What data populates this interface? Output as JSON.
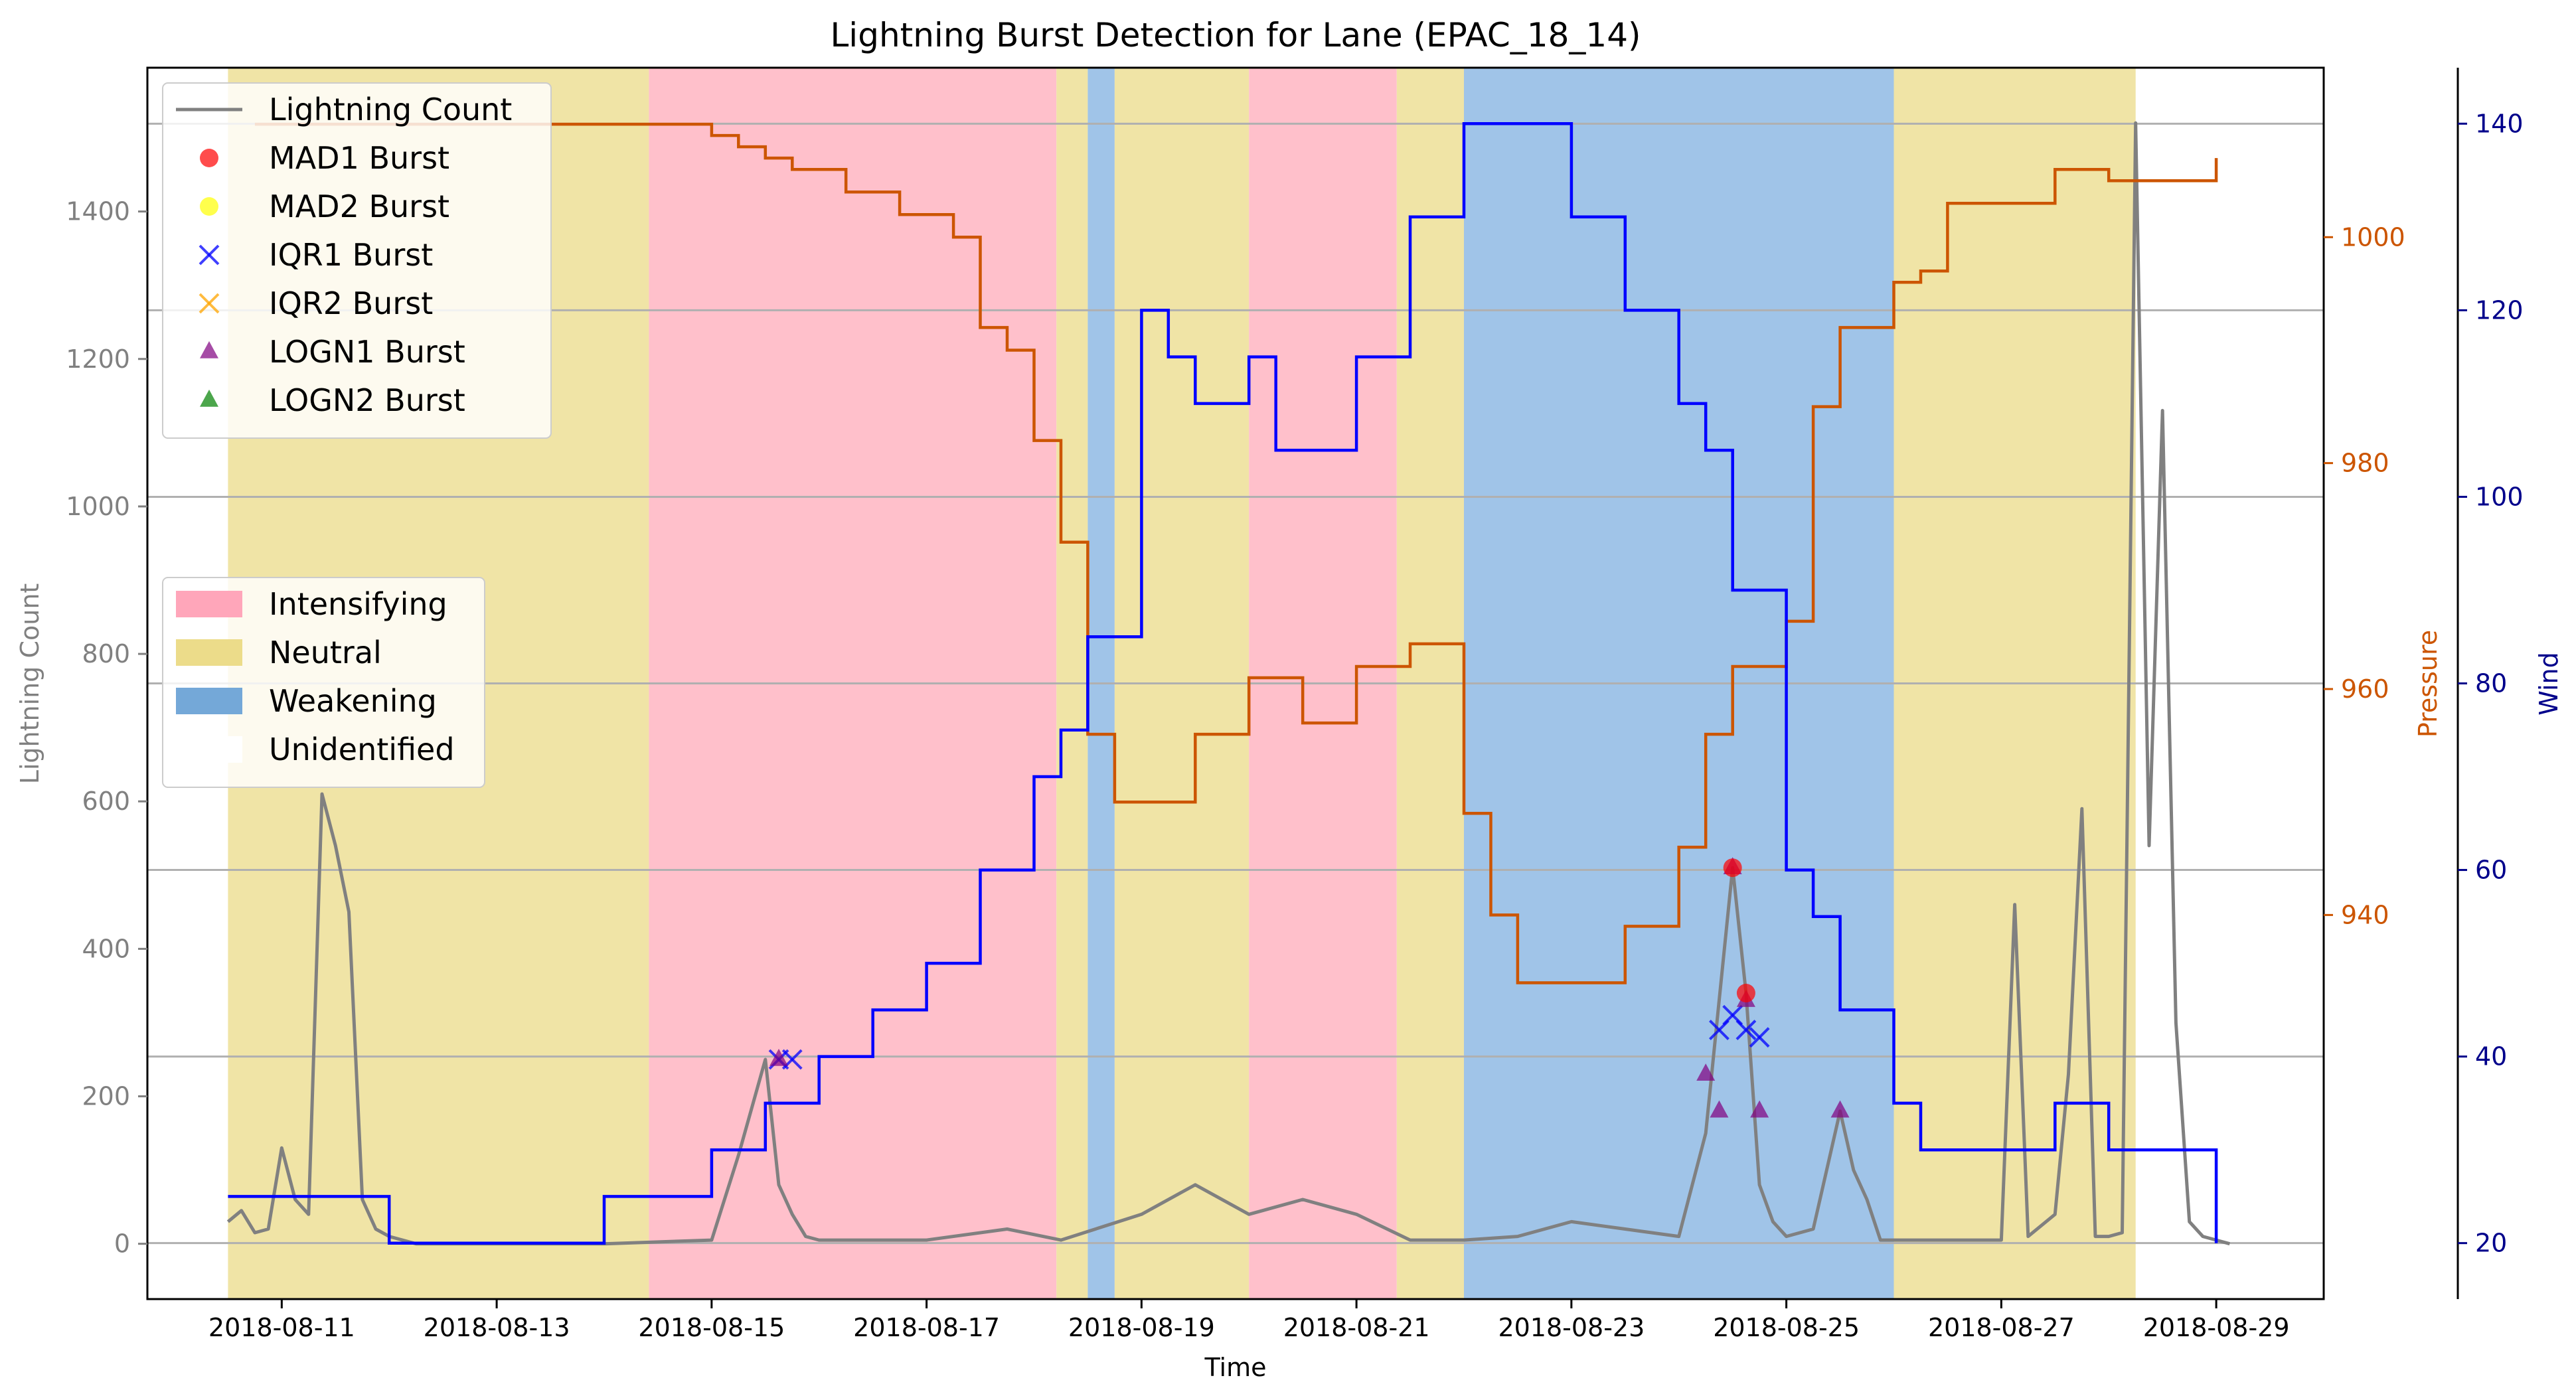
{
  "chart_data": {
    "type": "line",
    "title": "Lightning Burst Detection for Lane (EPAC_18_14)",
    "xlabel": "Time",
    "ylabel_left": "Lightning Count",
    "ylabel_pressure": "Pressure",
    "ylabel_wind": "Wind",
    "x_ticks": [
      "2018-08-11",
      "2018-08-13",
      "2018-08-15",
      "2018-08-17",
      "2018-08-19",
      "2018-08-21",
      "2018-08-23",
      "2018-08-25",
      "2018-08-27",
      "2018-08-29"
    ],
    "xlim": [
      "2018-08-09T18:00",
      "2018-08-30T00:00"
    ],
    "ylim_left": [
      -75,
      1595
    ],
    "yticks_left": [
      0,
      200,
      400,
      600,
      800,
      1000,
      1200,
      1400
    ],
    "ylim_pressure": [
      906,
      1015
    ],
    "yticks_pressure": [
      940,
      960,
      980,
      1000
    ],
    "ylim_wind": [
      14,
      146
    ],
    "yticks_wind": [
      20,
      40,
      60,
      80,
      100,
      120,
      140
    ],
    "grid": "horizontal lines at the wind axis ticks",
    "colors": {
      "lightning": "#808080",
      "pressure": "#cc5500",
      "wind": "#0000ff",
      "intensifying": "#ffc0cb",
      "neutral": "#f0e4a6",
      "weakening": "#a0c4e8",
      "mad1": "#ff0000",
      "mad2": "#ffff00",
      "iqr1": "#0000ff",
      "iqr2": "#ffa500",
      "logn1": "#800080",
      "logn2": "#008000"
    },
    "legend_series": [
      {
        "label": "Lightning Count",
        "marker": "line",
        "color": "#808080"
      },
      {
        "label": "MAD1 Burst",
        "marker": "circle",
        "color": "#ff0000"
      },
      {
        "label": "MAD2 Burst",
        "marker": "circle",
        "color": "#ffff00"
      },
      {
        "label": "IQR1 Burst",
        "marker": "x",
        "color": "#0000ff"
      },
      {
        "label": "IQR2 Burst",
        "marker": "x",
        "color": "#ffa500"
      },
      {
        "label": "LOGN1 Burst",
        "marker": "triangle",
        "color": "#800080"
      },
      {
        "label": "LOGN2 Burst",
        "marker": "triangle",
        "color": "#008000"
      }
    ],
    "legend_phases": [
      {
        "label": "Intensifying",
        "color": "#ffa6ba"
      },
      {
        "label": "Neutral",
        "color": "#ecdc8a"
      },
      {
        "label": "Weakening",
        "color": "#74a8d8"
      },
      {
        "label": "Unidentified",
        "color": "#ffffff"
      }
    ],
    "phases": [
      {
        "start": "2018-08-10T12:00",
        "end": "2018-08-14T10:00",
        "phase": "neutral"
      },
      {
        "start": "2018-08-14T10:00",
        "end": "2018-08-18T05:00",
        "phase": "intensifying"
      },
      {
        "start": "2018-08-18T05:00",
        "end": "2018-08-18T12:00",
        "phase": "neutral"
      },
      {
        "start": "2018-08-18T12:00",
        "end": "2018-08-18T18:00",
        "phase": "weakening"
      },
      {
        "start": "2018-08-18T18:00",
        "end": "2018-08-20T00:00",
        "phase": "neutral"
      },
      {
        "start": "2018-08-20T00:00",
        "end": "2018-08-21T09:00",
        "phase": "intensifying"
      },
      {
        "start": "2018-08-21T09:00",
        "end": "2018-08-22T00:00",
        "phase": "neutral"
      },
      {
        "start": "2018-08-22T00:00",
        "end": "2018-08-26T00:00",
        "phase": "weakening"
      },
      {
        "start": "2018-08-26T00:00",
        "end": "2018-08-28T06:00",
        "phase": "neutral"
      }
    ],
    "series": [
      {
        "name": "Lightning Count",
        "axis": "left",
        "x": [
          "2018-08-10T12:00",
          "2018-08-10T15:00",
          "2018-08-10T18:00",
          "2018-08-10T21:00",
          "2018-08-11T00:00",
          "2018-08-11T03:00",
          "2018-08-11T06:00",
          "2018-08-11T09:00",
          "2018-08-11T12:00",
          "2018-08-11T15:00",
          "2018-08-11T18:00",
          "2018-08-11T21:00",
          "2018-08-12T00:00",
          "2018-08-12T06:00",
          "2018-08-12T12:00",
          "2018-08-13T00:00",
          "2018-08-14T00:00",
          "2018-08-15T00:00",
          "2018-08-15T06:00",
          "2018-08-15T12:00",
          "2018-08-15T15:00",
          "2018-08-15T18:00",
          "2018-08-15T21:00",
          "2018-08-16T00:00",
          "2018-08-16T06:00",
          "2018-08-17T00:00",
          "2018-08-17T18:00",
          "2018-08-18T06:00",
          "2018-08-19T00:00",
          "2018-08-19T12:00",
          "2018-08-20T00:00",
          "2018-08-20T12:00",
          "2018-08-21T00:00",
          "2018-08-21T12:00",
          "2018-08-22T00:00",
          "2018-08-22T12:00",
          "2018-08-23T00:00",
          "2018-08-23T12:00",
          "2018-08-24T00:00",
          "2018-08-24T06:00",
          "2018-08-24T09:00",
          "2018-08-24T12:00",
          "2018-08-24T15:00",
          "2018-08-24T18:00",
          "2018-08-24T21:00",
          "2018-08-25T00:00",
          "2018-08-25T06:00",
          "2018-08-25T12:00",
          "2018-08-25T15:00",
          "2018-08-25T18:00",
          "2018-08-25T21:00",
          "2018-08-26T00:00",
          "2018-08-26T12:00",
          "2018-08-27T00:00",
          "2018-08-27T03:00",
          "2018-08-27T06:00",
          "2018-08-27T12:00",
          "2018-08-27T15:00",
          "2018-08-27T18:00",
          "2018-08-27T21:00",
          "2018-08-28T00:00",
          "2018-08-28T03:00",
          "2018-08-28T06:00",
          "2018-08-28T09:00",
          "2018-08-28T12:00",
          "2018-08-28T15:00",
          "2018-08-28T18:00",
          "2018-08-28T21:00",
          "2018-08-29T00:00",
          "2018-08-29T03:00"
        ],
        "values": [
          30,
          45,
          15,
          20,
          130,
          60,
          40,
          610,
          540,
          450,
          60,
          20,
          10,
          0,
          0,
          0,
          0,
          5,
          120,
          250,
          80,
          40,
          10,
          5,
          5,
          5,
          20,
          5,
          40,
          80,
          40,
          60,
          40,
          5,
          5,
          10,
          30,
          20,
          10,
          150,
          330,
          510,
          340,
          80,
          30,
          10,
          20,
          180,
          100,
          60,
          5,
          5,
          5,
          5,
          460,
          10,
          40,
          230,
          590,
          10,
          10,
          15,
          1520,
          540,
          1130,
          300,
          30,
          10,
          5,
          0
        ]
      },
      {
        "name": "Pressure",
        "axis": "pressure",
        "x": [
          "2018-08-10T18:00",
          "2018-08-14T18:00",
          "2018-08-15T00:00",
          "2018-08-15T06:00",
          "2018-08-15T12:00",
          "2018-08-15T18:00",
          "2018-08-16T06:00",
          "2018-08-16T18:00",
          "2018-08-17T06:00",
          "2018-08-17T12:00",
          "2018-08-17T18:00",
          "2018-08-18T00:00",
          "2018-08-18T06:00",
          "2018-08-18T12:00",
          "2018-08-18T18:00",
          "2018-08-19T00:00",
          "2018-08-19T12:00",
          "2018-08-20T00:00",
          "2018-08-20T12:00",
          "2018-08-21T00:00",
          "2018-08-21T12:00",
          "2018-08-22T00:00",
          "2018-08-22T06:00",
          "2018-08-22T12:00",
          "2018-08-23T00:00",
          "2018-08-23T12:00",
          "2018-08-24T00:00",
          "2018-08-24T06:00",
          "2018-08-24T12:00",
          "2018-08-25T00:00",
          "2018-08-25T06:00",
          "2018-08-25T12:00",
          "2018-08-26T00:00",
          "2018-08-26T06:00",
          "2018-08-26T12:00",
          "2018-08-27T12:00",
          "2018-08-28T00:00",
          "2018-08-29T00:00"
        ],
        "values": [
          1010,
          1010,
          1009,
          1008,
          1007,
          1006,
          1004,
          1002,
          1000,
          992,
          990,
          982,
          973,
          956,
          950,
          950,
          956,
          961,
          957,
          962,
          964,
          949,
          940,
          934,
          934,
          939,
          946,
          956,
          962,
          966,
          985,
          992,
          996,
          997,
          1003,
          1006,
          1005,
          1007
        ]
      },
      {
        "name": "Wind",
        "axis": "wind",
        "x": [
          "2018-08-10T12:00",
          "2018-08-12T00:00",
          "2018-08-14T00:00",
          "2018-08-15T00:00",
          "2018-08-15T12:00",
          "2018-08-16T00:00",
          "2018-08-16T12:00",
          "2018-08-17T00:00",
          "2018-08-17T12:00",
          "2018-08-18T00:00",
          "2018-08-18T06:00",
          "2018-08-18T12:00",
          "2018-08-19T00:00",
          "2018-08-19T06:00",
          "2018-08-19T12:00",
          "2018-08-20T00:00",
          "2018-08-20T06:00",
          "2018-08-21T00:00",
          "2018-08-21T12:00",
          "2018-08-22T00:00",
          "2018-08-22T06:00",
          "2018-08-23T00:00",
          "2018-08-23T12:00",
          "2018-08-24T00:00",
          "2018-08-24T06:00",
          "2018-08-24T12:00",
          "2018-08-25T00:00",
          "2018-08-25T06:00",
          "2018-08-25T12:00",
          "2018-08-26T00:00",
          "2018-08-26T06:00",
          "2018-08-26T12:00",
          "2018-08-27T12:00",
          "2018-08-28T00:00",
          "2018-08-29T00:00"
        ],
        "values": [
          25,
          20,
          25,
          30,
          35,
          40,
          45,
          50,
          60,
          70,
          75,
          85,
          120,
          115,
          110,
          115,
          105,
          115,
          130,
          140,
          140,
          130,
          120,
          110,
          105,
          90,
          60,
          55,
          45,
          35,
          30,
          30,
          35,
          30,
          20
        ]
      }
    ],
    "bursts": [
      {
        "label": "IQR1 Burst",
        "marker": "x",
        "color": "#0000ff",
        "x": [
          "2018-08-15T15:00",
          "2018-08-15T18:00",
          "2018-08-24T09:00",
          "2018-08-24T12:00",
          "2018-08-24T15:00",
          "2018-08-24T18:00"
        ],
        "values": [
          250,
          250,
          290,
          310,
          290,
          280
        ]
      },
      {
        "label": "LOGN1 Burst",
        "marker": "triangle",
        "color": "#800080",
        "x": [
          "2018-08-15T15:00",
          "2018-08-24T06:00",
          "2018-08-24T09:00",
          "2018-08-24T12:00",
          "2018-08-24T15:00",
          "2018-08-24T18:00",
          "2018-08-25T12:00"
        ],
        "values": [
          250,
          230,
          180,
          510,
          330,
          180,
          180
        ]
      },
      {
        "label": "MAD1 Burst",
        "marker": "circle",
        "color": "#ff0000",
        "x": [
          "2018-08-24T12:00",
          "2018-08-24T15:00"
        ],
        "values": [
          510,
          340
        ]
      }
    ]
  }
}
